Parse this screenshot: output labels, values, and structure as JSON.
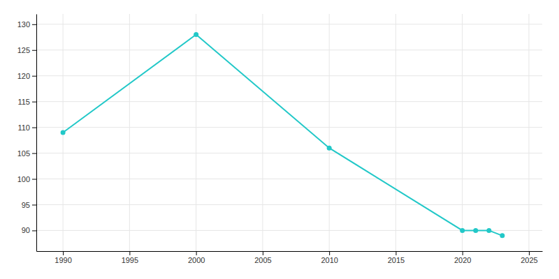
{
  "chart_data": {
    "type": "line",
    "x": [
      1990,
      2000,
      2010,
      2020,
      2021,
      2022,
      2023
    ],
    "values": [
      109,
      128,
      106,
      90,
      90,
      90,
      89
    ],
    "color": "#22c8c8",
    "marker": "circle",
    "xlim": [
      1988,
      2026
    ],
    "ylim": [
      86,
      132
    ],
    "xticks": [
      1990,
      1995,
      2000,
      2005,
      2010,
      2015,
      2020,
      2025
    ],
    "yticks": [
      90,
      95,
      100,
      105,
      110,
      115,
      120,
      125,
      130
    ],
    "grid": true
  }
}
